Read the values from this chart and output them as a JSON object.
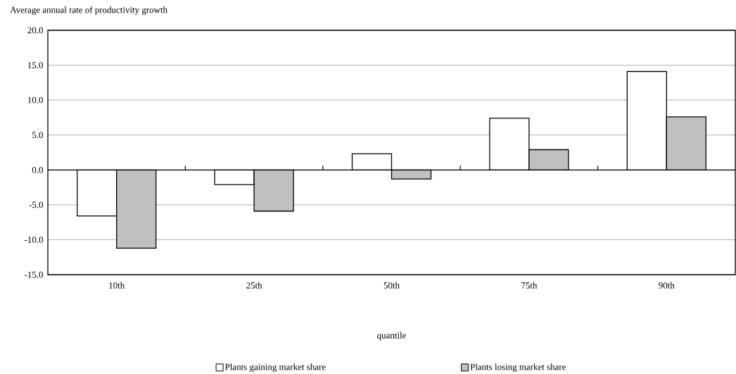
{
  "chart_data": {
    "type": "bar",
    "ylabel": "Average annual rate of productivity growth",
    "xlabel": "quantile",
    "categories": [
      "10th",
      "25th",
      "50th",
      "75th",
      "90th"
    ],
    "series": [
      {
        "name": "Plants gaining market share",
        "color": "#ffffff",
        "values": [
          -6.6,
          -2.1,
          2.3,
          7.4,
          14.1
        ]
      },
      {
        "name": "Plants losing market share",
        "color": "#c0c0c0",
        "values": [
          -11.2,
          -5.9,
          -1.3,
          2.9,
          7.6
        ]
      }
    ],
    "ylim": [
      -15,
      20
    ],
    "yticks": [
      {
        "value": -15,
        "label": "-15.0"
      },
      {
        "value": -10,
        "label": "-10.0"
      },
      {
        "value": -5,
        "label": "-5.0"
      },
      {
        "value": 0,
        "label": "0.0"
      },
      {
        "value": 5,
        "label": "5.0"
      },
      {
        "value": 10,
        "label": "10.0"
      },
      {
        "value": 15,
        "label": "15.0"
      },
      {
        "value": 20,
        "label": "20.0"
      }
    ],
    "grid": "y",
    "legend": "bottom"
  }
}
